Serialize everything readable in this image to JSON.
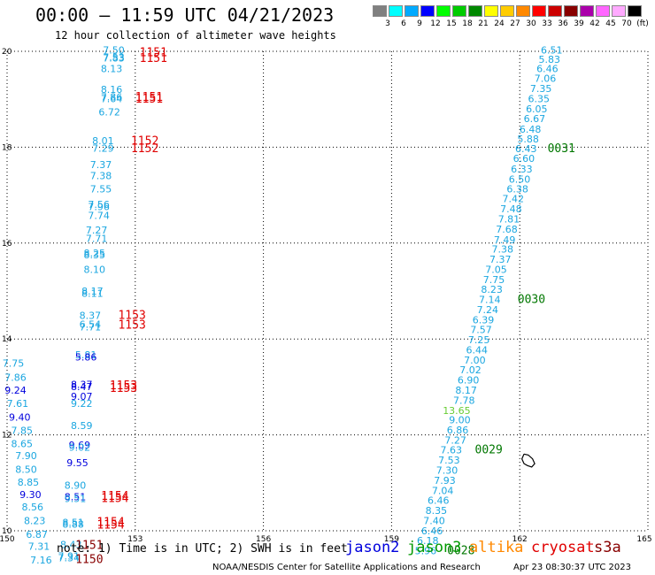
{
  "header": {
    "title": "00:00 – 11:59 UTC 04/21/2023",
    "subtitle": "12 hour collection of altimeter wave heights"
  },
  "colorbar": {
    "swatches": [
      {
        "label": "3",
        "color": "#808080"
      },
      {
        "label": "6",
        "color": "#00ffff"
      },
      {
        "label": "9",
        "color": "#00aaff"
      },
      {
        "label": "12",
        "color": "#0000ff"
      },
      {
        "label": "15",
        "color": "#00ff00"
      },
      {
        "label": "18",
        "color": "#00cc00"
      },
      {
        "label": "21",
        "color": "#008800"
      },
      {
        "label": "24",
        "color": "#ffff00"
      },
      {
        "label": "27",
        "color": "#ffcc00"
      },
      {
        "label": "30",
        "color": "#ff8800"
      },
      {
        "label": "33",
        "color": "#ff0000"
      },
      {
        "label": "36",
        "color": "#cc0000"
      },
      {
        "label": "39",
        "color": "#880000"
      },
      {
        "label": "42",
        "color": "#aa00aa"
      },
      {
        "label": "45",
        "color": "#ff66ff"
      },
      {
        "label": "70",
        "color": "#ffaaff"
      },
      {
        "label": "(ft)",
        "color": "#000000"
      }
    ]
  },
  "axes": {
    "x_ticks": [
      "150",
      "153",
      "156",
      "159",
      "162",
      "165"
    ],
    "y_ticks": [
      "20",
      "18",
      "16",
      "14",
      "12",
      "10"
    ]
  },
  "colors": {
    "light_blue": "#1aa6e0",
    "dark_blue": "#0000dd",
    "light_green": "#66cc33",
    "dark_green": "#007700",
    "red": "#e00000",
    "dark_red": "#880000",
    "orange": "#ff8800"
  },
  "map_data": {
    "west_track_values": [
      {
        "v": "7.50",
        "lon": 152.75,
        "lat": 19.95,
        "c": "light_blue"
      },
      {
        "v": "7.53",
        "lon": 152.75,
        "lat": 19.81,
        "c": "light_blue"
      },
      {
        "v": "7.83",
        "lon": 152.75,
        "lat": 19.79,
        "c": "light_blue"
      },
      {
        "v": "8.13",
        "lon": 152.7,
        "lat": 19.57,
        "c": "light_blue"
      },
      {
        "v": "8.16",
        "lon": 152.7,
        "lat": 19.13,
        "c": "light_blue"
      },
      {
        "v": "7.86",
        "lon": 152.7,
        "lat": 18.98,
        "c": "light_blue"
      },
      {
        "v": "7.64",
        "lon": 152.7,
        "lat": 18.94,
        "c": "light_blue"
      },
      {
        "v": "6.72",
        "lon": 152.65,
        "lat": 18.66,
        "c": "light_blue"
      },
      {
        "v": "8.01",
        "lon": 152.5,
        "lat": 18.06,
        "c": "light_blue"
      },
      {
        "v": "7.29",
        "lon": 152.5,
        "lat": 17.91,
        "c": "light_blue"
      },
      {
        "v": "7.37",
        "lon": 152.45,
        "lat": 17.56,
        "c": "light_blue"
      },
      {
        "v": "7.38",
        "lon": 152.45,
        "lat": 17.33,
        "c": "light_blue"
      },
      {
        "v": "7.55",
        "lon": 152.45,
        "lat": 17.06,
        "c": "light_blue"
      },
      {
        "v": "7.56",
        "lon": 152.4,
        "lat": 16.73,
        "c": "light_blue"
      },
      {
        "v": "7.96",
        "lon": 152.4,
        "lat": 16.69,
        "c": "light_blue"
      },
      {
        "v": "7.74",
        "lon": 152.4,
        "lat": 16.5,
        "c": "light_blue"
      },
      {
        "v": "7.27",
        "lon": 152.35,
        "lat": 16.2,
        "c": "light_blue"
      },
      {
        "v": "7.71",
        "lon": 152.35,
        "lat": 16.02,
        "c": "light_blue"
      },
      {
        "v": "8.25",
        "lon": 152.3,
        "lat": 15.72,
        "c": "light_blue"
      },
      {
        "v": "8.35",
        "lon": 152.3,
        "lat": 15.68,
        "c": "light_blue"
      },
      {
        "v": "8.10",
        "lon": 152.3,
        "lat": 15.38,
        "c": "light_blue"
      },
      {
        "v": "8.17",
        "lon": 152.25,
        "lat": 14.93,
        "c": "light_blue"
      },
      {
        "v": "8.11",
        "lon": 152.25,
        "lat": 14.88,
        "c": "light_blue"
      },
      {
        "v": "8.37",
        "lon": 152.2,
        "lat": 14.42,
        "c": "light_blue"
      },
      {
        "v": "6.54",
        "lon": 152.2,
        "lat": 14.23,
        "c": "light_blue"
      },
      {
        "v": "7.71",
        "lon": 152.2,
        "lat": 14.18,
        "c": "light_blue"
      },
      {
        "v": "5.81",
        "lon": 152.1,
        "lat": 13.6,
        "c": "light_blue"
      },
      {
        "v": "5.86",
        "lon": 152.1,
        "lat": 13.55,
        "c": "dark_blue"
      },
      {
        "v": "8.47",
        "lon": 152.0,
        "lat": 12.93,
        "c": "dark_blue"
      },
      {
        "v": "8.37",
        "lon": 152.0,
        "lat": 12.98,
        "c": "dark_blue"
      },
      {
        "v": "9.07",
        "lon": 152.0,
        "lat": 12.73,
        "c": "dark_blue"
      },
      {
        "v": "9.22",
        "lon": 152.0,
        "lat": 12.58,
        "c": "light_blue"
      },
      {
        "v": "8.59",
        "lon": 152.0,
        "lat": 12.12,
        "c": "light_blue"
      },
      {
        "v": "9.69",
        "lon": 151.95,
        "lat": 11.72,
        "c": "dark_blue"
      },
      {
        "v": "9.02",
        "lon": 151.95,
        "lat": 11.67,
        "c": "light_blue"
      },
      {
        "v": "9.55",
        "lon": 151.9,
        "lat": 11.35,
        "c": "dark_blue"
      },
      {
        "v": "8.90",
        "lon": 151.85,
        "lat": 10.88,
        "c": "light_blue"
      },
      {
        "v": "8.51",
        "lon": 151.85,
        "lat": 10.64,
        "c": "dark_blue"
      },
      {
        "v": "9.51",
        "lon": 151.85,
        "lat": 10.6,
        "c": "light_blue"
      },
      {
        "v": "8.51",
        "lon": 151.8,
        "lat": 10.1,
        "c": "light_blue"
      },
      {
        "v": "8.88",
        "lon": 151.8,
        "lat": 10.06,
        "c": "light_blue"
      },
      {
        "v": "8.43",
        "lon": 151.75,
        "lat": 9.64,
        "c": "light_blue"
      },
      {
        "v": "7.91",
        "lon": 151.7,
        "lat": 9.4,
        "c": "light_blue"
      },
      {
        "v": "7.34",
        "lon": 151.7,
        "lat": 9.36,
        "c": "light_blue"
      }
    ],
    "far_west_values": [
      {
        "v": "7.75",
        "lon": 150.4,
        "lat": 13.42,
        "c": "light_blue"
      },
      {
        "v": "7.86",
        "lon": 150.45,
        "lat": 13.13,
        "c": "light_blue"
      },
      {
        "v": "9.24",
        "lon": 150.45,
        "lat": 12.86,
        "c": "dark_blue"
      },
      {
        "v": "7.61",
        "lon": 150.5,
        "lat": 12.58,
        "c": "light_blue"
      },
      {
        "v": "9.40",
        "lon": 150.55,
        "lat": 12.3,
        "c": "dark_blue"
      },
      {
        "v": "7.85",
        "lon": 150.6,
        "lat": 12.02,
        "c": "light_blue"
      },
      {
        "v": "8.65",
        "lon": 150.6,
        "lat": 11.74,
        "c": "light_blue"
      },
      {
        "v": "7.90",
        "lon": 150.7,
        "lat": 11.49,
        "c": "light_blue"
      },
      {
        "v": "8.50",
        "lon": 150.7,
        "lat": 11.21,
        "c": "light_blue"
      },
      {
        "v": "8.85",
        "lon": 150.75,
        "lat": 10.94,
        "c": "light_blue"
      },
      {
        "v": "9.30",
        "lon": 150.8,
        "lat": 10.68,
        "c": "dark_blue"
      },
      {
        "v": "8.56",
        "lon": 150.85,
        "lat": 10.42,
        "c": "light_blue"
      },
      {
        "v": "8.23",
        "lon": 150.9,
        "lat": 10.14,
        "c": "light_blue"
      },
      {
        "v": "6.87",
        "lon": 150.95,
        "lat": 9.85,
        "c": "light_blue"
      },
      {
        "v": "7.31",
        "lon": 151.0,
        "lat": 9.6,
        "c": "light_blue"
      },
      {
        "v": "7.16",
        "lon": 151.05,
        "lat": 9.32,
        "c": "light_blue"
      }
    ],
    "east_track_values": [
      {
        "v": "6.51",
        "lon": 163.0,
        "lat": 19.95,
        "c": "light_blue"
      },
      {
        "v": "5.83",
        "lon": 162.95,
        "lat": 19.76,
        "c": "light_blue"
      },
      {
        "v": "6.46",
        "lon": 162.9,
        "lat": 19.57,
        "c": "light_blue"
      },
      {
        "v": "7.06",
        "lon": 162.85,
        "lat": 19.36,
        "c": "light_blue"
      },
      {
        "v": "7.35",
        "lon": 162.75,
        "lat": 19.15,
        "c": "light_blue"
      },
      {
        "v": "6.35",
        "lon": 162.7,
        "lat": 18.94,
        "c": "light_blue"
      },
      {
        "v": "6.05",
        "lon": 162.65,
        "lat": 18.73,
        "c": "light_blue"
      },
      {
        "v": "6.67",
        "lon": 162.6,
        "lat": 18.52,
        "c": "light_blue"
      },
      {
        "v": "6.48",
        "lon": 162.5,
        "lat": 18.3,
        "c": "light_blue"
      },
      {
        "v": "5.88",
        "lon": 162.45,
        "lat": 18.1,
        "c": "light_blue"
      },
      {
        "v": "6.43",
        "lon": 162.4,
        "lat": 17.9,
        "c": "light_blue"
      },
      {
        "v": "6.60",
        "lon": 162.35,
        "lat": 17.69,
        "c": "light_blue"
      },
      {
        "v": "6.33",
        "lon": 162.3,
        "lat": 17.47,
        "c": "light_blue"
      },
      {
        "v": "6.50",
        "lon": 162.25,
        "lat": 17.26,
        "c": "light_blue"
      },
      {
        "v": "6.38",
        "lon": 162.2,
        "lat": 17.06,
        "c": "light_blue"
      },
      {
        "v": "7.42",
        "lon": 162.1,
        "lat": 16.85,
        "c": "light_blue"
      },
      {
        "v": "7.48",
        "lon": 162.05,
        "lat": 16.64,
        "c": "light_blue"
      },
      {
        "v": "7.81",
        "lon": 162.0,
        "lat": 16.43,
        "c": "light_blue"
      },
      {
        "v": "7.68",
        "lon": 161.95,
        "lat": 16.22,
        "c": "light_blue"
      },
      {
        "v": "7.49",
        "lon": 161.9,
        "lat": 16.0,
        "c": "light_blue"
      },
      {
        "v": "7.38",
        "lon": 161.85,
        "lat": 15.8,
        "c": "light_blue"
      },
      {
        "v": "7.37",
        "lon": 161.8,
        "lat": 15.59,
        "c": "light_blue"
      },
      {
        "v": "7.05",
        "lon": 161.7,
        "lat": 15.38,
        "c": "light_blue"
      },
      {
        "v": "7.75",
        "lon": 161.65,
        "lat": 15.17,
        "c": "light_blue"
      },
      {
        "v": "8.23",
        "lon": 161.6,
        "lat": 14.96,
        "c": "light_blue"
      },
      {
        "v": "7.14",
        "lon": 161.55,
        "lat": 14.75,
        "c": "light_blue"
      },
      {
        "v": "7.24",
        "lon": 161.5,
        "lat": 14.54,
        "c": "light_blue"
      },
      {
        "v": "6.39",
        "lon": 161.4,
        "lat": 14.33,
        "c": "light_blue"
      },
      {
        "v": "7.57",
        "lon": 161.35,
        "lat": 14.12,
        "c": "light_blue"
      },
      {
        "v": "7.25",
        "lon": 161.3,
        "lat": 13.91,
        "c": "light_blue"
      },
      {
        "v": "6.44",
        "lon": 161.25,
        "lat": 13.7,
        "c": "light_blue"
      },
      {
        "v": "7.00",
        "lon": 161.2,
        "lat": 13.49,
        "c": "light_blue"
      },
      {
        "v": "7.02",
        "lon": 161.1,
        "lat": 13.28,
        "c": "light_blue"
      },
      {
        "v": "6.90",
        "lon": 161.05,
        "lat": 13.07,
        "c": "light_blue"
      },
      {
        "v": "8.17",
        "lon": 161.0,
        "lat": 12.86,
        "c": "light_blue"
      },
      {
        "v": "7.78",
        "lon": 160.95,
        "lat": 12.65,
        "c": "light_blue"
      },
      {
        "v": "13.65",
        "lon": 160.85,
        "lat": 12.44,
        "c": "light_green"
      },
      {
        "v": "9.00",
        "lon": 160.85,
        "lat": 12.24,
        "c": "light_blue"
      },
      {
        "v": "6.86",
        "lon": 160.8,
        "lat": 12.03,
        "c": "light_blue"
      },
      {
        "v": "7.27",
        "lon": 160.75,
        "lat": 11.82,
        "c": "light_blue"
      },
      {
        "v": "7.63",
        "lon": 160.65,
        "lat": 11.61,
        "c": "light_blue"
      },
      {
        "v": "7.53",
        "lon": 160.6,
        "lat": 11.4,
        "c": "light_blue"
      },
      {
        "v": "7.30",
        "lon": 160.55,
        "lat": 11.19,
        "c": "light_blue"
      },
      {
        "v": "7.93",
        "lon": 160.5,
        "lat": 10.98,
        "c": "light_blue"
      },
      {
        "v": "7.04",
        "lon": 160.45,
        "lat": 10.77,
        "c": "light_blue"
      },
      {
        "v": "6.46",
        "lon": 160.35,
        "lat": 10.56,
        "c": "light_blue"
      },
      {
        "v": "8.35",
        "lon": 160.3,
        "lat": 10.35,
        "c": "light_blue"
      },
      {
        "v": "7.40",
        "lon": 160.25,
        "lat": 10.14,
        "c": "light_blue"
      },
      {
        "v": "6.46",
        "lon": 160.2,
        "lat": 9.93,
        "c": "light_blue"
      },
      {
        "v": "6.18",
        "lon": 160.1,
        "lat": 9.72,
        "c": "light_blue"
      },
      {
        "v": "5.96",
        "lon": 160.05,
        "lat": 9.51,
        "c": "light_blue"
      }
    ],
    "time_labels": [
      {
        "t": "1151",
        "lon": 153.1,
        "lat": 19.9,
        "c": "red"
      },
      {
        "t": "1151",
        "lon": 153.1,
        "lat": 19.78,
        "c": "red"
      },
      {
        "t": "1151",
        "lon": 153.0,
        "lat": 18.97,
        "c": "red"
      },
      {
        "t": "1151",
        "lon": 153.0,
        "lat": 18.93,
        "c": "red"
      },
      {
        "t": "1152",
        "lon": 152.9,
        "lat": 18.05,
        "c": "red"
      },
      {
        "t": "1152",
        "lon": 152.9,
        "lat": 17.9,
        "c": "red"
      },
      {
        "t": "1153",
        "lon": 152.6,
        "lat": 14.42,
        "c": "red"
      },
      {
        "t": "1153",
        "lon": 152.6,
        "lat": 14.22,
        "c": "red"
      },
      {
        "t": "1153",
        "lon": 152.4,
        "lat": 12.95,
        "c": "red"
      },
      {
        "t": "1153",
        "lon": 152.4,
        "lat": 12.9,
        "c": "red"
      },
      {
        "t": "1154",
        "lon": 152.2,
        "lat": 10.65,
        "c": "red"
      },
      {
        "t": "1154",
        "lon": 152.2,
        "lat": 10.6,
        "c": "red"
      },
      {
        "t": "1154",
        "lon": 152.1,
        "lat": 10.1,
        "c": "red"
      },
      {
        "t": "1154",
        "lon": 152.1,
        "lat": 10.05,
        "c": "red"
      },
      {
        "t": "1151",
        "lon": 151.6,
        "lat": 9.62,
        "c": "dark_red"
      },
      {
        "t": "1150",
        "lon": 151.6,
        "lat": 9.33,
        "c": "dark_red"
      },
      {
        "t": "0031",
        "lon": 162.65,
        "lat": 17.9,
        "c": "dark_green"
      },
      {
        "t": "0030",
        "lon": 161.95,
        "lat": 14.75,
        "c": "dark_green"
      },
      {
        "t": "0029",
        "lon": 160.95,
        "lat": 11.61,
        "c": "dark_green"
      },
      {
        "t": "0028",
        "lon": 160.3,
        "lat": 9.51,
        "c": "dark_green"
      }
    ],
    "island_outline": [
      [
        162.1,
        11.6
      ],
      [
        162.2,
        11.58
      ],
      [
        162.3,
        11.5
      ],
      [
        162.35,
        11.4
      ],
      [
        162.28,
        11.33
      ],
      [
        162.18,
        11.36
      ],
      [
        162.1,
        11.4
      ],
      [
        162.05,
        11.5
      ],
      [
        162.1,
        11.6
      ]
    ]
  },
  "footer": {
    "note": "note: 1) Time is in UTC; 2) SWH is in feet",
    "legend": [
      {
        "label": "jason2",
        "color": "#0000dd"
      },
      {
        "label": "jason3",
        "color": "#009900"
      },
      {
        "label": "altika",
        "color": "#ff8800"
      },
      {
        "label": "cryosat",
        "color": "#e00000"
      },
      {
        "label": "s3a",
        "color": "#880000"
      }
    ],
    "credit": "NOAA/NESDIS Center for Satellite Applications and Research",
    "timestamp": "Apr 23 08:30:37 UTC 2023"
  }
}
